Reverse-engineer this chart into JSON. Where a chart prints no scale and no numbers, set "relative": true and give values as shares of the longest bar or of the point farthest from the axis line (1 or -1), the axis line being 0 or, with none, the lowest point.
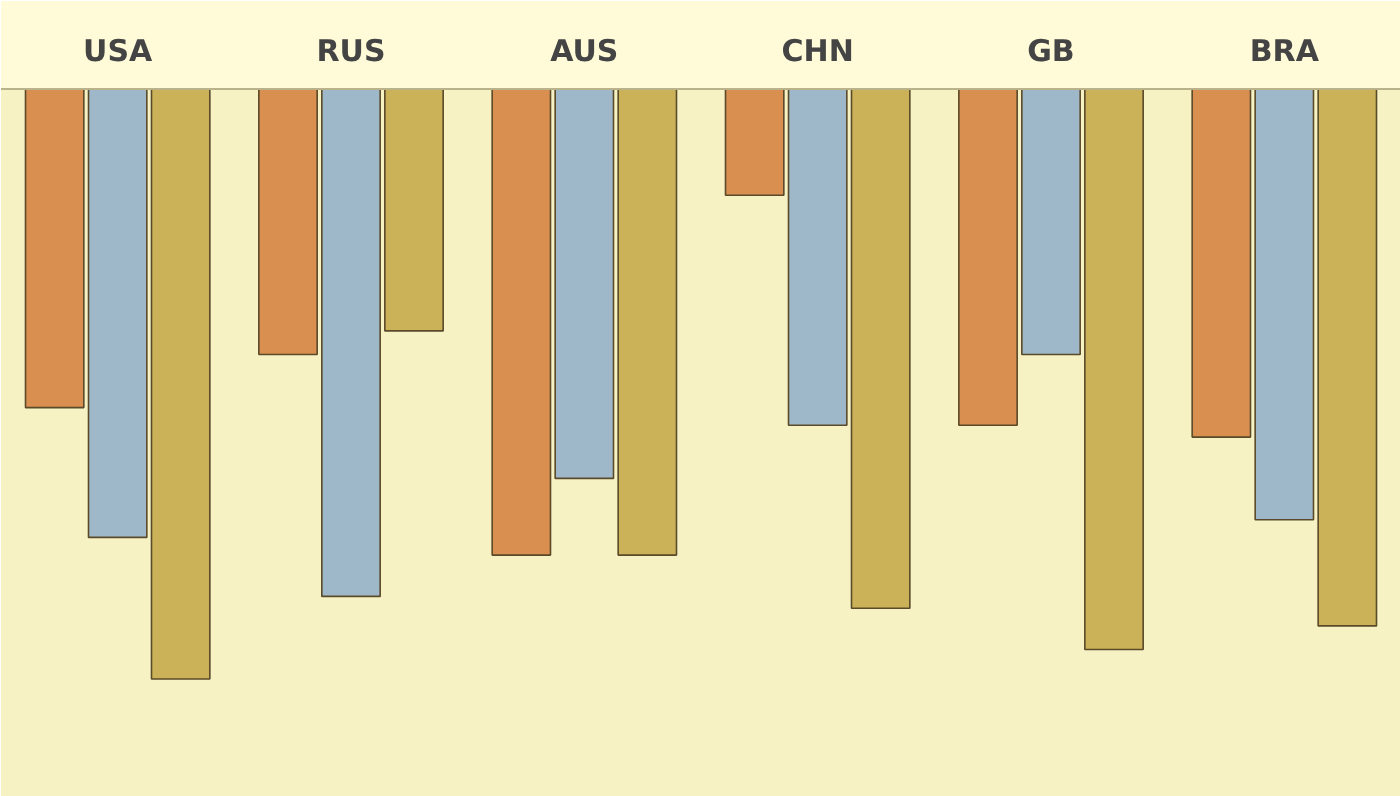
{
  "chart_data": {
    "type": "bar",
    "relative": true,
    "categories": [
      "USA",
      "RUS",
      "AUS",
      "CHN",
      "GB",
      "BRA"
    ],
    "series": [
      {
        "color": "#d98f4f",
        "values": [
          -0.54,
          -0.45,
          -0.79,
          -0.18,
          -0.57,
          -0.59
        ]
      },
      {
        "color": "#9fb8c9",
        "values": [
          -0.76,
          -0.86,
          -0.66,
          -0.57,
          -0.45,
          -0.73
        ]
      },
      {
        "color": "#cbb258",
        "values": [
          -1.0,
          -0.41,
          -0.79,
          -0.88,
          -0.95,
          -0.91
        ]
      }
    ]
  }
}
